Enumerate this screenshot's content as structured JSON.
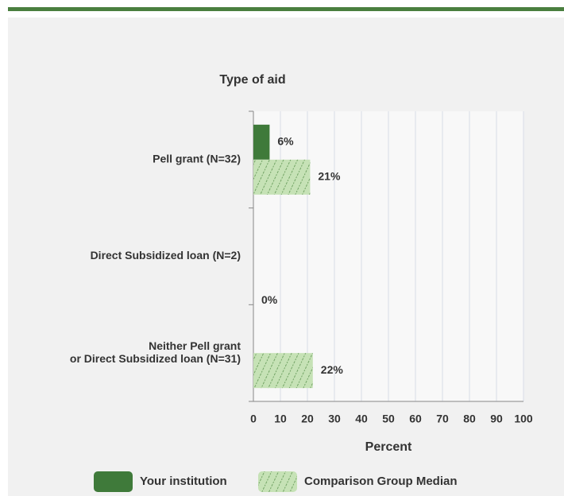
{
  "chart_data": {
    "type": "bar",
    "orientation": "horizontal",
    "title": "Type of aid",
    "x_label": "Percent",
    "categories": [
      "Pell grant  (N=32)",
      "Direct Subsidized loan (N=2)",
      "Neither Pell grant\nor Direct Subsidized loan (N=31)"
    ],
    "series": [
      {
        "name": "Your institution",
        "color": "#3f7a3a",
        "hatch": false,
        "values": [
          6,
          null,
          0
        ],
        "value_labels": [
          "6%",
          null,
          "0%"
        ]
      },
      {
        "name": "Comparison Group Median",
        "color": "#c6e2b6",
        "hatch": true,
        "values": [
          21,
          null,
          22
        ],
        "value_labels": [
          "21%",
          null,
          "22%"
        ]
      }
    ],
    "xlim": [
      0,
      100
    ],
    "xticks": [
      0,
      10,
      20,
      30,
      40,
      50,
      60,
      70,
      80,
      90,
      100
    ],
    "grid": true
  }
}
